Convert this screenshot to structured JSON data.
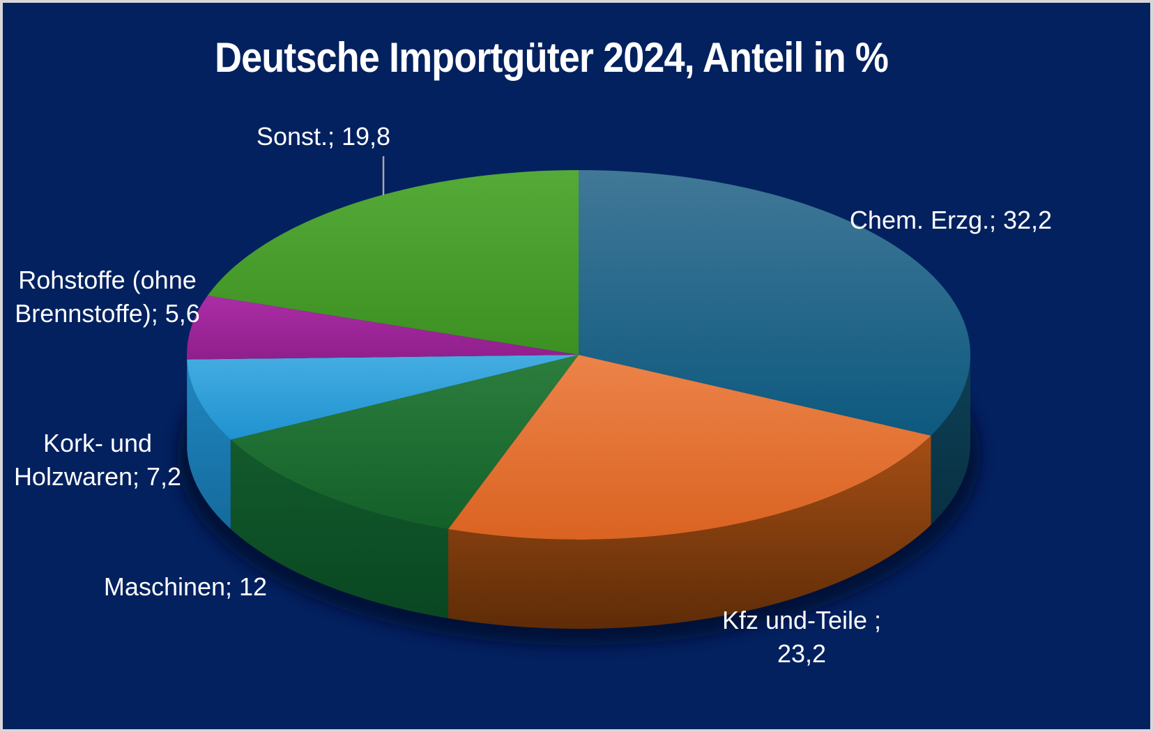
{
  "title": "Deutsche Importgüter 2024, Anteil in %",
  "colors": {
    "background": "#03215f",
    "frame_border": "#d8d6d8",
    "text": "#ffffff",
    "leader_line": "#a9a9a9",
    "shadow": "#01102f"
  },
  "chart_data": {
    "type": "pie",
    "style": "3d",
    "title": "Deutsche Importgüter 2024, Anteil in %",
    "value_unit": "percent",
    "number_format": "de-DE (decimal comma)",
    "start_angle_deg": 0,
    "direction": "clockwise",
    "legend": "none (direct data labels with category; value)",
    "slices": [
      {
        "label": "Chem. Erzg.",
        "value": 32.2,
        "display": "Chem. Erzg.; 32,2",
        "colors": {
          "top": "#417897",
          "top_dark": "#0d597f",
          "side": "#0d4055",
          "side_dark": "#093043"
        }
      },
      {
        "label": "Kfz und-Teile",
        "value": 23.2,
        "display_line1": "Kfz und-Teile ;",
        "display_line2": "23,2",
        "colors": {
          "top": "#ec8349",
          "top_dark": "#da6321",
          "side": "#a54e15",
          "side_dark": "#5e2c07"
        }
      },
      {
        "label": "Maschinen",
        "value": 12,
        "display": "Maschinen; 12",
        "colors": {
          "top": "#2c7e3e",
          "top_dark": "#136029",
          "side": "#135a2c",
          "side_dark": "#094722"
        }
      },
      {
        "label": "Kork- und Holzwaren",
        "value": 7.2,
        "display_line1": "Kork- und",
        "display_line2": "Holzwaren; 7,2",
        "colors": {
          "top": "#44ade2",
          "top_dark": "#1f92cf",
          "side": "#2088c2",
          "side_dark": "#156a9c"
        }
      },
      {
        "label": "Rohstoffe (ohne Brennstoffe)",
        "value": 5.6,
        "display_line1": "Rohstoffe (ohne",
        "display_line2": "Brennstoffe); 5,6",
        "colors": {
          "top": "#ab2da6",
          "top_dark": "#8f1f8b",
          "side": "#7a1a76",
          "side_dark": "#671563"
        }
      },
      {
        "label": "Sonst.",
        "value": 19.8,
        "display": "Sonst.; 19,8",
        "colors": {
          "top": "#55aa38",
          "top_dark": "#3b9021",
          "side": "#2f7d1d",
          "side_dark": "#256816"
        }
      }
    ]
  }
}
